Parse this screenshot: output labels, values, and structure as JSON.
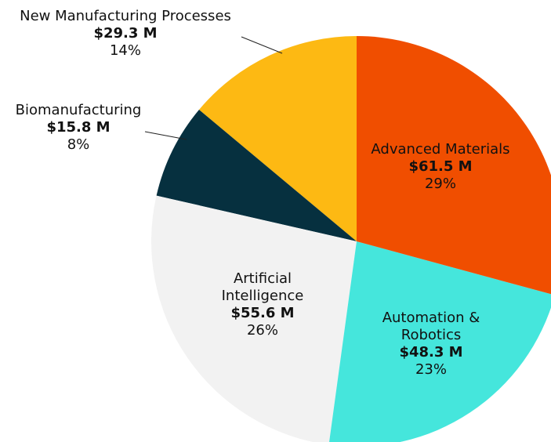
{
  "chart_data": {
    "type": "pie",
    "categories": [
      "Advanced Materials",
      "Automation & Robotics",
      "Artificial Intelligence",
      "Biomanufacturing",
      "New Manufacturing Processes"
    ],
    "values": [
      61.5,
      48.3,
      55.6,
      15.8,
      29.3
    ],
    "value_labels": [
      "$61.5 M",
      "$48.3 M",
      "$55.6 M",
      "$15.8 M",
      "$29.3 M"
    ],
    "percent_labels": [
      "29%",
      "23%",
      "26%",
      "8%",
      "14%"
    ],
    "colors": [
      "#f04e00",
      "#45e6dc",
      "#f2f2f2",
      "#06303f",
      "#fdb913"
    ]
  }
}
